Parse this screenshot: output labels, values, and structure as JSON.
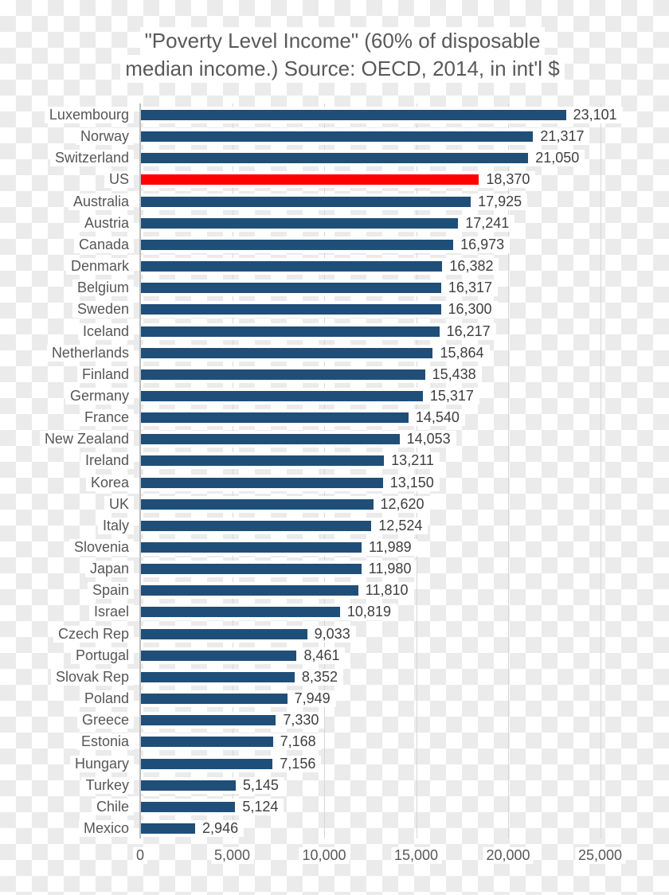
{
  "title": {
    "line1": "\"Poverty Level Income\" (60% of disposable",
    "line2": "median income.) Source: OECD, 2014, in int'l $"
  },
  "chart_data": {
    "type": "bar",
    "orientation": "horizontal",
    "title": "\"Poverty Level Income\" (60% of disposable median income.) Source: OECD, 2014, in int'l $",
    "categories": [
      "Luxembourg",
      "Norway",
      "Switzerland",
      "US",
      "Australia",
      "Austria",
      "Canada",
      "Denmark",
      "Belgium",
      "Sweden",
      "Iceland",
      "Netherlands",
      "Finland",
      "Germany",
      "France",
      "New Zealand",
      "Ireland",
      "Korea",
      "UK",
      "Italy",
      "Slovenia",
      "Japan",
      "Spain",
      "Israel",
      "Czech Rep",
      "Portugal",
      "Slovak Rep",
      "Poland",
      "Greece",
      "Estonia",
      "Hungary",
      "Turkey",
      "Chile",
      "Mexico"
    ],
    "values": [
      23101,
      21317,
      21050,
      18370,
      17925,
      17241,
      16973,
      16382,
      16317,
      16300,
      16217,
      15864,
      15438,
      15317,
      14540,
      14053,
      13211,
      13150,
      12620,
      12524,
      11989,
      11980,
      11810,
      10819,
      9033,
      8461,
      8352,
      7949,
      7330,
      7168,
      7156,
      5145,
      5124,
      2946
    ],
    "value_labels": [
      "23,101",
      "21,317",
      "21,050",
      "18,370",
      "17,925",
      "17,241",
      "16,973",
      "16,382",
      "16,317",
      "16,300",
      "16,217",
      "15,864",
      "15,438",
      "15,317",
      "14,540",
      "14,053",
      "13,211",
      "13,150",
      "12,620",
      "12,524",
      "11,989",
      "11,980",
      "11,810",
      "10,819",
      "9,033",
      "8,461",
      "8,352",
      "7,949",
      "7,330",
      "7,168",
      "7,156",
      "5,145",
      "5,124",
      "2,946"
    ],
    "highlight": {
      "category": "US",
      "color": "#ff0000"
    },
    "bar_color": "#1f4e79",
    "xlim": [
      0,
      25000
    ],
    "x_ticks": [
      0,
      5000,
      10000,
      15000,
      20000,
      25000
    ],
    "x_tick_labels": [
      "0",
      "5,000",
      "10,000",
      "15,000",
      "20,000",
      "25,000"
    ],
    "grid": "vertical",
    "legend": "none",
    "data_labels": "outside-end"
  },
  "colors": {
    "bar": "#1f4e79",
    "highlight": "#ff0000",
    "gridline": "#d6d6d6",
    "axis_line": "#bfbfbf",
    "title_text": "#595959",
    "category_text": "#565656",
    "value_text": "#3f3f3f",
    "checker_white": "#ffffff",
    "checker_gray": "#ebebeb"
  }
}
